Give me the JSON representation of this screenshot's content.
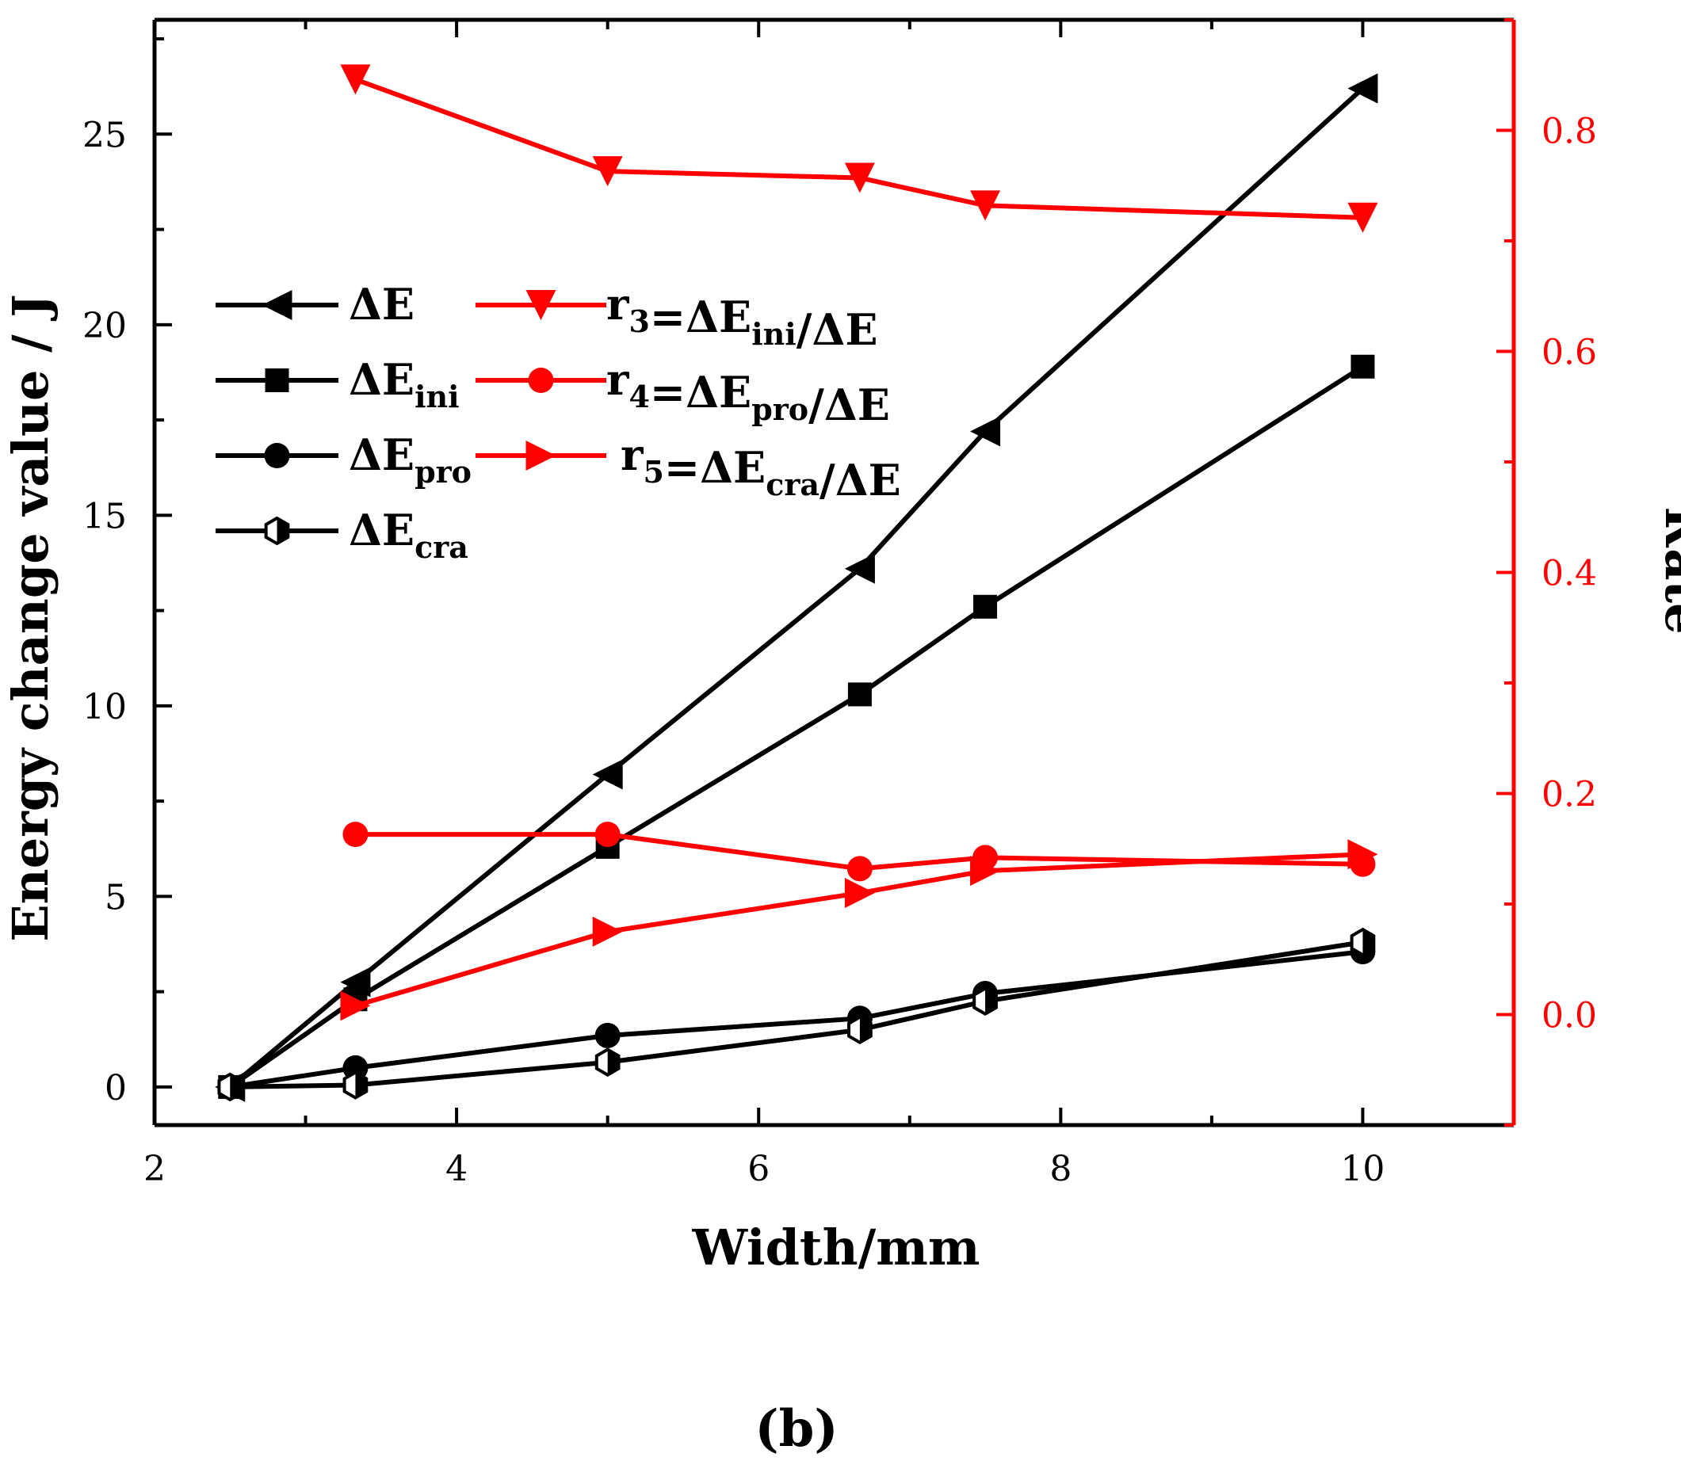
{
  "chart_data": {
    "type": "line",
    "caption": "(b)",
    "xlabel": "Width/mm",
    "ylabel": "Energy change value / J",
    "y2label": "Rate",
    "xlim": [
      2,
      11
    ],
    "ylim": [
      -1,
      28
    ],
    "y2lim": [
      -0.1,
      0.9
    ],
    "xticks": [
      2,
      4,
      6,
      8,
      10
    ],
    "xtick_labels": [
      "2",
      "4",
      "6",
      "8",
      "10"
    ],
    "yticks": [
      0,
      5,
      10,
      15,
      20,
      25
    ],
    "ytick_labels": [
      "0",
      "5",
      "10",
      "15",
      "20",
      "25"
    ],
    "y2ticks": [
      0.0,
      0.2,
      0.4,
      0.6,
      0.8
    ],
    "y2tick_labels": [
      "0.0",
      "0.2",
      "0.4",
      "0.6",
      "0.8"
    ],
    "grid": false,
    "legend_position": "upper-left",
    "colors": {
      "black": "#000000",
      "red": "#ff0000"
    },
    "series": [
      {
        "name": "ΔE",
        "legend_main": "ΔE",
        "legend_sub": "",
        "legend_tail": "",
        "axis": "left",
        "color": "#000000",
        "marker": "triangle-left",
        "x": [
          2.5,
          3.33,
          5,
          6.67,
          7.5,
          10
        ],
        "values": [
          0,
          2.75,
          8.2,
          13.6,
          17.2,
          26.2
        ]
      },
      {
        "name": "ΔEini",
        "legend_main": "ΔE",
        "legend_sub": "ini",
        "legend_tail": "",
        "axis": "left",
        "color": "#000000",
        "marker": "square",
        "x": [
          2.5,
          3.33,
          5,
          6.67,
          7.5,
          10
        ],
        "values": [
          0,
          2.3,
          6.3,
          10.3,
          12.6,
          18.9
        ]
      },
      {
        "name": "ΔEpro",
        "legend_main": "ΔE",
        "legend_sub": "pro",
        "legend_tail": "",
        "axis": "left",
        "color": "#000000",
        "marker": "circle",
        "x": [
          2.5,
          3.33,
          5,
          6.67,
          7.5,
          10
        ],
        "values": [
          0,
          0.5,
          1.35,
          1.8,
          2.45,
          3.55
        ]
      },
      {
        "name": "ΔEcra",
        "legend_main": "ΔE",
        "legend_sub": "cra",
        "legend_tail": "",
        "axis": "left",
        "color": "#000000",
        "marker": "half-hexagon",
        "x": [
          2.5,
          3.33,
          5,
          6.67,
          7.5,
          10
        ],
        "values": [
          0,
          0.05,
          0.65,
          1.5,
          2.25,
          3.8
        ]
      },
      {
        "name": "r3=ΔEini/ΔE",
        "legend_main": "r",
        "legend_sub": "3",
        "legend_tail": "=ΔE",
        "legend_sub2": "ini",
        "legend_tail2": "/ΔE",
        "axis": "right",
        "color": "#ff0000",
        "marker": "triangle-down",
        "x": [
          3.33,
          5,
          6.67,
          7.5,
          10
        ],
        "values": [
          0.846,
          0.763,
          0.757,
          0.732,
          0.721
        ]
      },
      {
        "name": "r4=ΔEpro/ΔE",
        "legend_main": "r",
        "legend_sub": "4",
        "legend_tail": "=ΔE",
        "legend_sub2": "pro",
        "legend_tail2": "/ΔE",
        "axis": "right",
        "color": "#ff0000",
        "marker": "circle",
        "x": [
          3.33,
          5,
          6.67,
          7.5,
          10
        ],
        "values": [
          0.163,
          0.163,
          0.132,
          0.142,
          0.136
        ]
      },
      {
        "name": "r5=ΔEcra/ΔE",
        "legend_main": "r",
        "legend_sub": "5",
        "legend_tail": "=ΔE",
        "legend_sub2": "cra",
        "legend_tail2": "/ΔE",
        "axis": "right",
        "color": "#ff0000",
        "marker": "triangle-right",
        "x": [
          3.33,
          5,
          6.67,
          7.5,
          10
        ],
        "values": [
          0.008,
          0.075,
          0.11,
          0.13,
          0.145
        ]
      }
    ]
  }
}
